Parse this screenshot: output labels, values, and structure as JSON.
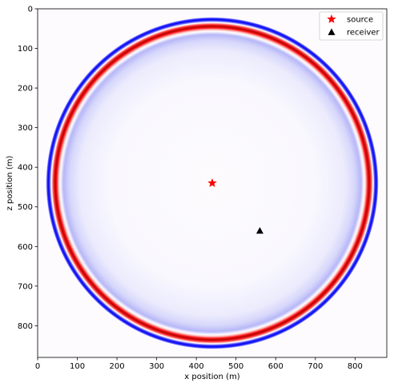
{
  "chart_data": {
    "type": "heatmap",
    "title": "",
    "xlabel": "x position (m)",
    "ylabel": "z position (m)",
    "xlim": [
      0,
      880
    ],
    "ylim": [
      880,
      0
    ],
    "x_ticks": [
      0,
      100,
      200,
      300,
      400,
      500,
      600,
      700,
      800
    ],
    "y_ticks": [
      0,
      100,
      200,
      300,
      400,
      500,
      600,
      700,
      800
    ],
    "grid": false,
    "colormap": "seismic",
    "wavefront": {
      "center": [
        440,
        440
      ],
      "radius": 400
    },
    "markers": [
      {
        "name": "source",
        "x": 440,
        "z": 440,
        "symbol": "star",
        "color": "#ff0000"
      },
      {
        "name": "receiver",
        "x": 560,
        "z": 560,
        "symbol": "triangle",
        "color": "#000000"
      }
    ],
    "legend": {
      "position": "top-right",
      "entries": [
        "source",
        "receiver"
      ]
    }
  }
}
